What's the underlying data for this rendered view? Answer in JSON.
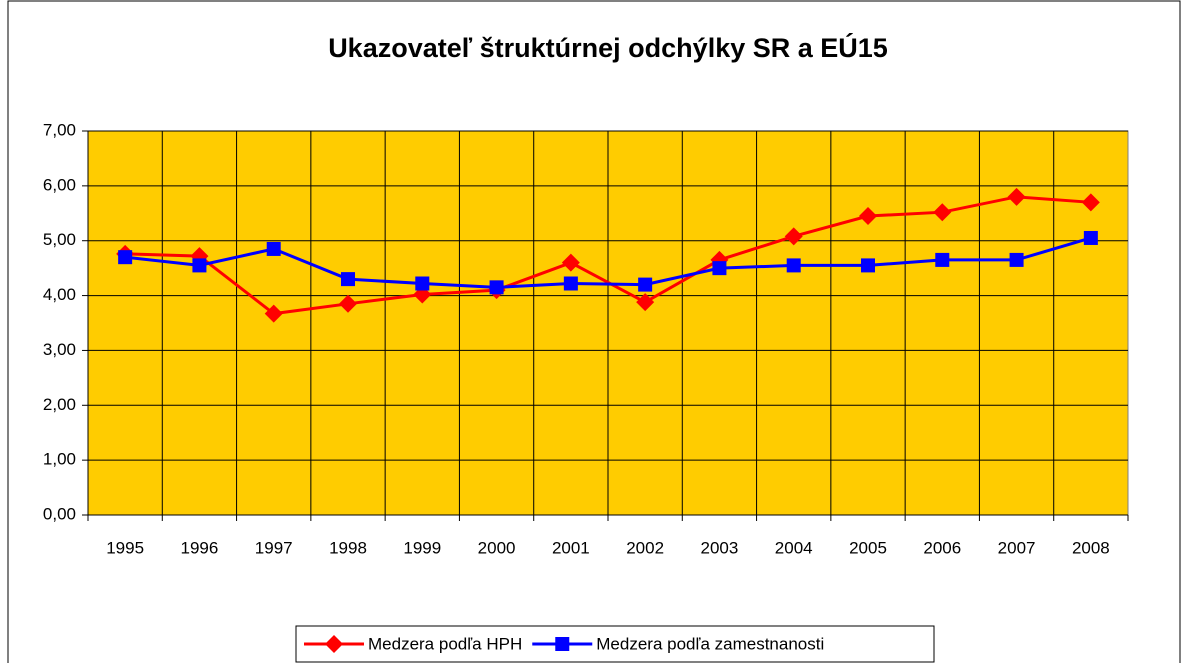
{
  "chart_data": {
    "type": "line",
    "title": "Ukazovateľ štruktúrnej odchýlky SR a EÚ15",
    "categories": [
      "1995",
      "1996",
      "1997",
      "1998",
      "1999",
      "2000",
      "2001",
      "2002",
      "2003",
      "2004",
      "2005",
      "2006",
      "2007",
      "2008"
    ],
    "series": [
      {
        "name": "Medzera podľa HPH",
        "color": "#ff0000",
        "marker": "diamond",
        "values": [
          4.76,
          4.72,
          3.67,
          3.85,
          4.02,
          4.1,
          4.6,
          3.88,
          4.65,
          5.08,
          5.45,
          5.52,
          5.8,
          5.7
        ]
      },
      {
        "name": "Medzera podľa zamestnanosti",
        "color": "#0000ff",
        "marker": "square",
        "values": [
          4.7,
          4.55,
          4.85,
          4.3,
          4.22,
          4.15,
          4.22,
          4.2,
          4.5,
          4.55,
          4.55,
          4.65,
          4.65,
          5.05
        ]
      }
    ],
    "ylim": [
      0,
      7
    ],
    "yticks": [
      {
        "value": 0,
        "label": "0,00"
      },
      {
        "value": 1,
        "label": "1,00"
      },
      {
        "value": 2,
        "label": "2,00"
      },
      {
        "value": 3,
        "label": "3,00"
      },
      {
        "value": 4,
        "label": "4,00"
      },
      {
        "value": 5,
        "label": "5,00"
      },
      {
        "value": 6,
        "label": "6,00"
      },
      {
        "value": 7,
        "label": "7,00"
      }
    ],
    "grid": true,
    "plot_background": "#ffcc00",
    "legend": "bottom"
  }
}
